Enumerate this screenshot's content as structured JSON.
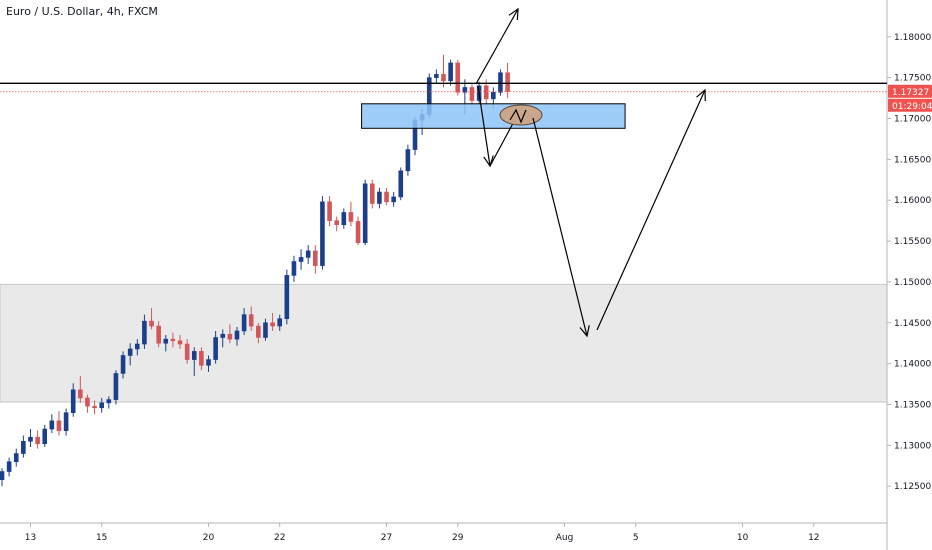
{
  "chart_data": {
    "type": "candlestick",
    "title": "Euro / U.S. Dollar, 4h, FXCM",
    "y_ticks": [
      "1.18000",
      "1.17500",
      "1.17000",
      "1.16500",
      "1.16000",
      "1.15500",
      "1.15000",
      "1.14500",
      "1.14000",
      "1.13500",
      "1.13000",
      "1.12500"
    ],
    "y_tick_values": [
      1.18,
      1.175,
      1.17,
      1.165,
      1.16,
      1.155,
      1.15,
      1.145,
      1.14,
      1.135,
      1.13,
      1.125
    ],
    "ylim": [
      1.1205,
      1.1845
    ],
    "x_ticks": [
      "13",
      "15",
      "20",
      "22",
      "27",
      "29",
      "Aug",
      "5",
      "10",
      "12"
    ],
    "x_tick_index": [
      4,
      14,
      29,
      39,
      54,
      64,
      79,
      89,
      104,
      114
    ],
    "xlim": [
      0,
      124
    ],
    "current_price_label": "1.17327",
    "countdown_label": "01:29:04",
    "current_price": 1.17327,
    "resistance_level": 1.1743,
    "gray_zone": [
      1.1353,
      1.1497
    ],
    "blue_zone": {
      "from_index": 50.5,
      "to_index": 87.5,
      "low": 1.1688,
      "high": 1.1718
    },
    "colors": {
      "up": "#1b3f8b",
      "down": "#d3565a",
      "up_fill": "#6b8cc7",
      "blue_zone": "#8ec4f8",
      "gray_zone": "#e9e9e9",
      "price_tag": "#ef5350"
    },
    "candles": [
      [
        1.1258,
        1.1272,
        1.125,
        1.1268
      ],
      [
        1.1268,
        1.1285,
        1.1262,
        1.128
      ],
      [
        1.128,
        1.1296,
        1.1274,
        1.129
      ],
      [
        1.129,
        1.1312,
        1.1285,
        1.1305
      ],
      [
        1.1305,
        1.132,
        1.1298,
        1.131
      ],
      [
        1.131,
        1.1318,
        1.1296,
        1.1302
      ],
      [
        1.1302,
        1.1325,
        1.1298,
        1.132
      ],
      [
        1.132,
        1.1338,
        1.1315,
        1.133
      ],
      [
        1.133,
        1.1342,
        1.1312,
        1.1318
      ],
      [
        1.1318,
        1.1345,
        1.1312,
        1.134
      ],
      [
        1.134,
        1.1376,
        1.1335,
        1.1368
      ],
      [
        1.1368,
        1.1385,
        1.1352,
        1.1358
      ],
      [
        1.1358,
        1.1362,
        1.134,
        1.1348
      ],
      [
        1.1348,
        1.1355,
        1.1338,
        1.1346
      ],
      [
        1.1346,
        1.1358,
        1.134,
        1.1352
      ],
      [
        1.1352,
        1.136,
        1.1345,
        1.1356
      ],
      [
        1.1356,
        1.1392,
        1.135,
        1.1388
      ],
      [
        1.1388,
        1.1415,
        1.1382,
        1.141
      ],
      [
        1.141,
        1.1425,
        1.1398,
        1.1418
      ],
      [
        1.1418,
        1.143,
        1.141,
        1.1424
      ],
      [
        1.1424,
        1.146,
        1.1418,
        1.1452
      ],
      [
        1.1452,
        1.1468,
        1.1442,
        1.1446
      ],
      [
        1.1446,
        1.1452,
        1.142,
        1.1425
      ],
      [
        1.1425,
        1.1435,
        1.1415,
        1.143
      ],
      [
        1.143,
        1.1438,
        1.142,
        1.1428
      ],
      [
        1.1428,
        1.1435,
        1.1418,
        1.1424
      ],
      [
        1.1424,
        1.143,
        1.14,
        1.1405
      ],
      [
        1.1405,
        1.142,
        1.1385,
        1.1415
      ],
      [
        1.1415,
        1.142,
        1.1392,
        1.1398
      ],
      [
        1.1398,
        1.141,
        1.139,
        1.1405
      ],
      [
        1.1405,
        1.144,
        1.14,
        1.1432
      ],
      [
        1.1432,
        1.1442,
        1.142,
        1.1436
      ],
      [
        1.1436,
        1.1448,
        1.1425,
        1.143
      ],
      [
        1.143,
        1.1445,
        1.1422,
        1.144
      ],
      [
        1.144,
        1.1468,
        1.1435,
        1.146
      ],
      [
        1.146,
        1.147,
        1.144,
        1.1446
      ],
      [
        1.1446,
        1.145,
        1.1425,
        1.1432
      ],
      [
        1.1432,
        1.1455,
        1.1428,
        1.145
      ],
      [
        1.145,
        1.1462,
        1.144,
        1.1446
      ],
      [
        1.1446,
        1.146,
        1.144,
        1.1455
      ],
      [
        1.1455,
        1.1515,
        1.1448,
        1.1508
      ],
      [
        1.1508,
        1.1532,
        1.15,
        1.1525
      ],
      [
        1.1525,
        1.154,
        1.1515,
        1.153
      ],
      [
        1.153,
        1.1545,
        1.1522,
        1.1538
      ],
      [
        1.1538,
        1.1545,
        1.151,
        1.152
      ],
      [
        1.152,
        1.1605,
        1.1515,
        1.1598
      ],
      [
        1.1598,
        1.1605,
        1.1568,
        1.1575
      ],
      [
        1.1575,
        1.158,
        1.1562,
        1.157
      ],
      [
        1.157,
        1.159,
        1.1565,
        1.1585
      ],
      [
        1.1585,
        1.1598,
        1.1568,
        1.1574
      ],
      [
        1.1574,
        1.158,
        1.1545,
        1.1548
      ],
      [
        1.1548,
        1.1625,
        1.1545,
        1.162
      ],
      [
        1.162,
        1.1625,
        1.159,
        1.1596
      ],
      [
        1.1596,
        1.1615,
        1.159,
        1.161
      ],
      [
        1.161,
        1.1615,
        1.1594,
        1.1598
      ],
      [
        1.1598,
        1.161,
        1.1592,
        1.1604
      ],
      [
        1.1604,
        1.164,
        1.16,
        1.1636
      ],
      [
        1.1636,
        1.1668,
        1.163,
        1.1662
      ],
      [
        1.1662,
        1.1702,
        1.1655,
        1.1698
      ],
      [
        1.1698,
        1.1712,
        1.168,
        1.1705
      ],
      [
        1.1705,
        1.1755,
        1.17,
        1.175
      ],
      [
        1.175,
        1.176,
        1.1742,
        1.1754
      ],
      [
        1.1754,
        1.1778,
        1.1738,
        1.1746
      ],
      [
        1.1746,
        1.1772,
        1.174,
        1.1768
      ],
      [
        1.1768,
        1.1772,
        1.1728,
        1.1732
      ],
      [
        1.1732,
        1.1748,
        1.1705,
        1.1738
      ],
      [
        1.1738,
        1.1742,
        1.1716,
        1.1722
      ],
      [
        1.1722,
        1.1745,
        1.1718,
        1.174
      ],
      [
        1.174,
        1.1748,
        1.1715,
        1.1724
      ],
      [
        1.1724,
        1.1738,
        1.1712,
        1.1732
      ],
      [
        1.1732,
        1.176,
        1.1728,
        1.1756
      ],
      [
        1.1756,
        1.1768,
        1.1725,
        1.1733
      ]
    ]
  }
}
